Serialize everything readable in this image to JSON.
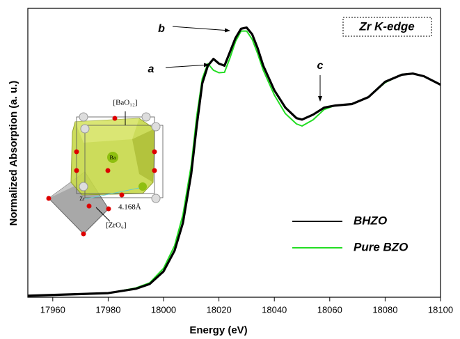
{
  "chart_data": {
    "type": "line",
    "xlabel": "Energy (eV)",
    "ylabel": "Normalized Absorption (a. u.)",
    "xlim": [
      17951,
      18100
    ],
    "ylim": [
      0,
      1.4
    ],
    "xticks": [
      17960,
      17980,
      18000,
      18020,
      18040,
      18060,
      18080,
      18100
    ],
    "legend": "lower right",
    "edge_label": "Zr K-edge",
    "annotations": [
      "a",
      "b",
      "c"
    ],
    "inset_labels": [
      "[BaO₁₂]",
      "Ba",
      "Zr",
      "4.168Å",
      "[ZrO₆]"
    ],
    "x": [
      17951,
      17980,
      17990,
      17995,
      18000,
      18004,
      18007,
      18010,
      18012,
      18014,
      18016,
      18018,
      18020,
      18022,
      18024,
      18026,
      18028,
      18030,
      18032,
      18034,
      18036,
      18040,
      18044,
      18048,
      18050,
      18054,
      18058,
      18062,
      18068,
      18074,
      18080,
      18086,
      18090,
      18094,
      18100
    ],
    "series": [
      {
        "name": "BHZO",
        "color": "#000000",
        "values": [
          0.007,
          0.02,
          0.041,
          0.064,
          0.125,
          0.226,
          0.361,
          0.598,
          0.834,
          1.037,
          1.122,
          1.155,
          1.132,
          1.122,
          1.189,
          1.257,
          1.301,
          1.307,
          1.274,
          1.206,
          1.122,
          1.003,
          0.919,
          0.868,
          0.861,
          0.885,
          0.919,
          0.929,
          0.936,
          0.97,
          1.044,
          1.078,
          1.084,
          1.071,
          1.03
        ]
      },
      {
        "name": "Pure BZO",
        "color": "#22dd22",
        "values": [
          0.007,
          0.02,
          0.045,
          0.07,
          0.14,
          0.25,
          0.4,
          0.64,
          0.88,
          1.06,
          1.132,
          1.1,
          1.088,
          1.09,
          1.16,
          1.24,
          1.29,
          1.29,
          1.25,
          1.18,
          1.1,
          0.98,
          0.89,
          0.84,
          0.83,
          0.86,
          0.91,
          0.93,
          0.935,
          0.97,
          1.04,
          1.08,
          1.084,
          1.07,
          1.03
        ]
      }
    ]
  }
}
